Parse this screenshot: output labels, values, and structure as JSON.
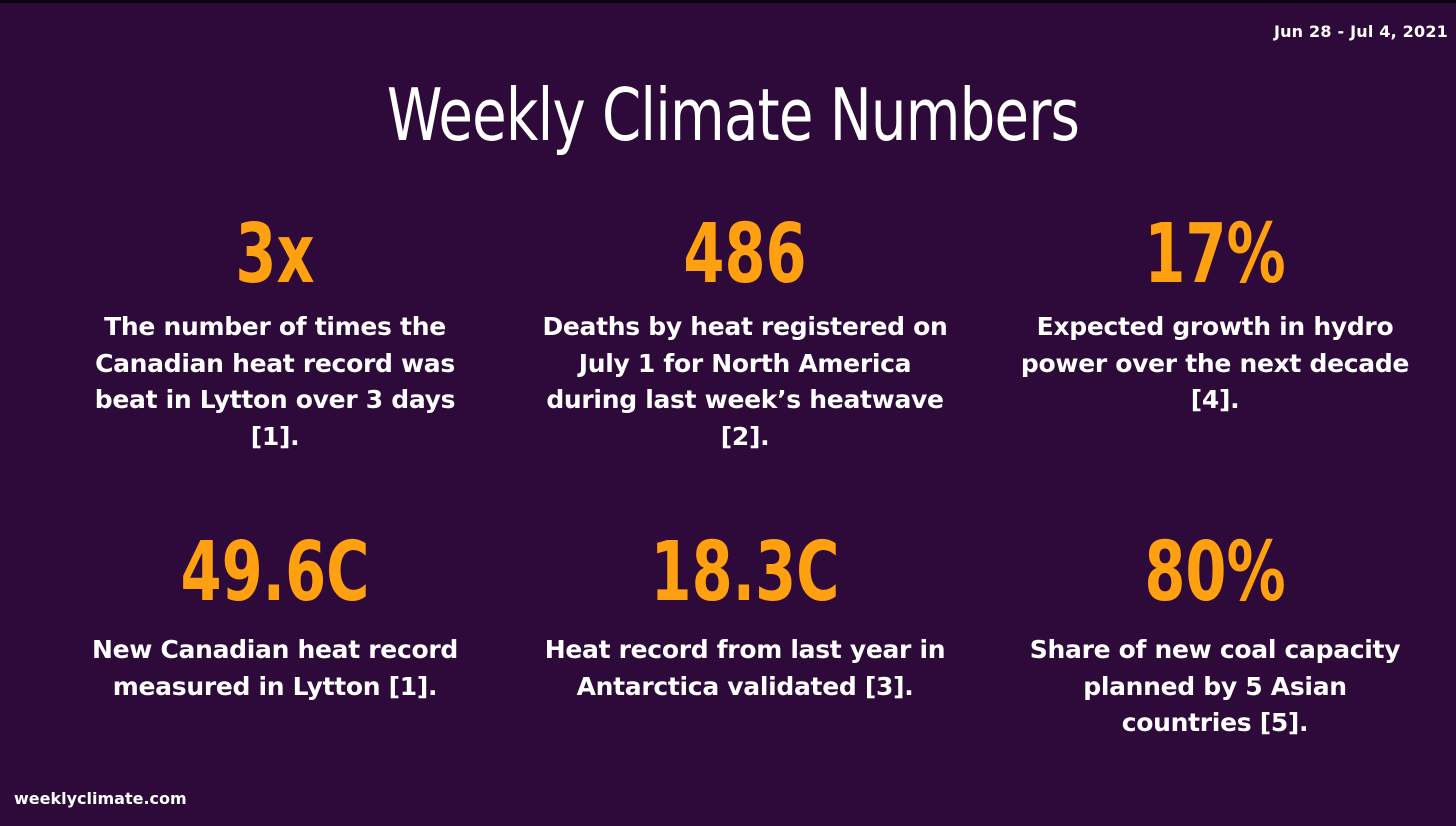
{
  "header": {
    "date_range": "Jun 28 - Jul 4, 2021",
    "title": "Weekly Climate Numbers"
  },
  "colors": {
    "background": "#2e0a3b",
    "accent": "#ffa011",
    "text": "#ffffff"
  },
  "stats": [
    {
      "value": "3x",
      "description": "The number of times the Canadian heat record was beat in Lytton over 3 days [1]."
    },
    {
      "value": "486",
      "description": "Deaths by heat registered on July 1 for North America during last week’s heatwave [2]."
    },
    {
      "value": "17%",
      "description": "Expected growth in hydro power over the next decade [4]."
    },
    {
      "value": "49.6C",
      "description": "New Canadian heat record measured in Lytton [1]."
    },
    {
      "value": "18.3C",
      "description": "Heat record from last year in Antarctica validated [3]."
    },
    {
      "value": "80%",
      "description": "Share of new coal capacity planned by 5 Asian countries [5]."
    }
  ],
  "footer": {
    "website": "weeklyclimate.com"
  }
}
